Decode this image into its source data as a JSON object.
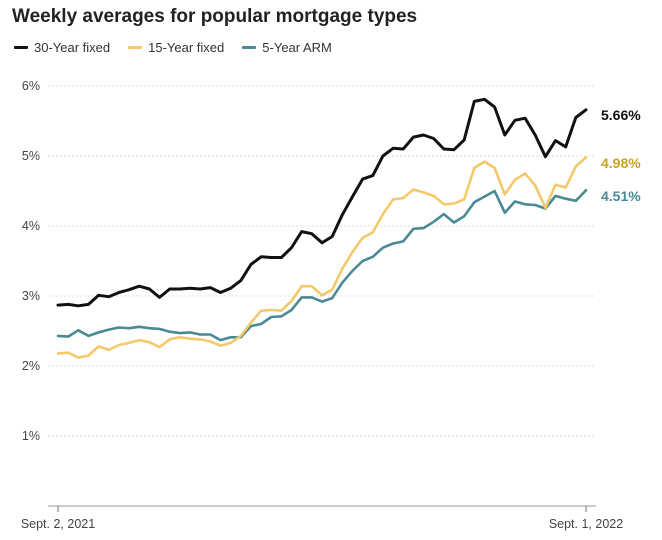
{
  "chart_data": {
    "type": "line",
    "title": "Weekly averages for popular mortgage types",
    "xlabel": "",
    "ylabel": "",
    "ylim": [
      0,
      6
    ],
    "yticks": [
      "1%",
      "2%",
      "3%",
      "4%",
      "5%",
      "6%"
    ],
    "xticks": [
      "Sept. 2, 2021",
      "Sept. 1, 2022"
    ],
    "grid": true,
    "legend_position": "top-left",
    "series": [
      {
        "name": "30-Year fixed",
        "color": "#111111",
        "end_label": "5.66%",
        "values": [
          2.87,
          2.88,
          2.86,
          2.88,
          3.01,
          2.99,
          3.05,
          3.09,
          3.14,
          3.1,
          2.98,
          3.1,
          3.1,
          3.11,
          3.1,
          3.12,
          3.05,
          3.11,
          3.22,
          3.45,
          3.56,
          3.55,
          3.55,
          3.69,
          3.92,
          3.89,
          3.76,
          3.85,
          4.16,
          4.42,
          4.67,
          4.72,
          5.0,
          5.11,
          5.1,
          5.27,
          5.3,
          5.25,
          5.1,
          5.09,
          5.23,
          5.78,
          5.81,
          5.7,
          5.3,
          5.51,
          5.54,
          5.3,
          4.99,
          5.22,
          5.13,
          5.55,
          5.66
        ]
      },
      {
        "name": "15-Year fixed",
        "color": "#f3c969",
        "end_label": "4.98%",
        "values": [
          2.18,
          2.19,
          2.12,
          2.15,
          2.28,
          2.23,
          2.3,
          2.33,
          2.37,
          2.34,
          2.27,
          2.38,
          2.41,
          2.39,
          2.38,
          2.35,
          2.29,
          2.33,
          2.43,
          2.62,
          2.79,
          2.8,
          2.79,
          2.93,
          3.14,
          3.14,
          3.01,
          3.09,
          3.39,
          3.63,
          3.83,
          3.91,
          4.17,
          4.38,
          4.4,
          4.52,
          4.48,
          4.43,
          4.31,
          4.32,
          4.38,
          4.83,
          4.92,
          4.83,
          4.45,
          4.66,
          4.75,
          4.58,
          4.26,
          4.59,
          4.55,
          4.85,
          4.98
        ]
      },
      {
        "name": "5-Year ARM",
        "color": "#4a8a94",
        "end_label": "4.51%",
        "values": [
          2.43,
          2.42,
          2.51,
          2.43,
          2.48,
          2.52,
          2.55,
          2.54,
          2.56,
          2.54,
          2.53,
          2.49,
          2.47,
          2.48,
          2.45,
          2.45,
          2.37,
          2.41,
          2.41,
          2.57,
          2.6,
          2.7,
          2.71,
          2.8,
          2.98,
          2.98,
          2.92,
          2.97,
          3.19,
          3.36,
          3.5,
          3.56,
          3.69,
          3.75,
          3.78,
          3.96,
          3.97,
          4.06,
          4.17,
          4.05,
          4.14,
          4.34,
          4.42,
          4.5,
          4.19,
          4.35,
          4.31,
          4.3,
          4.25,
          4.43,
          4.39,
          4.36,
          4.51
        ]
      }
    ]
  }
}
